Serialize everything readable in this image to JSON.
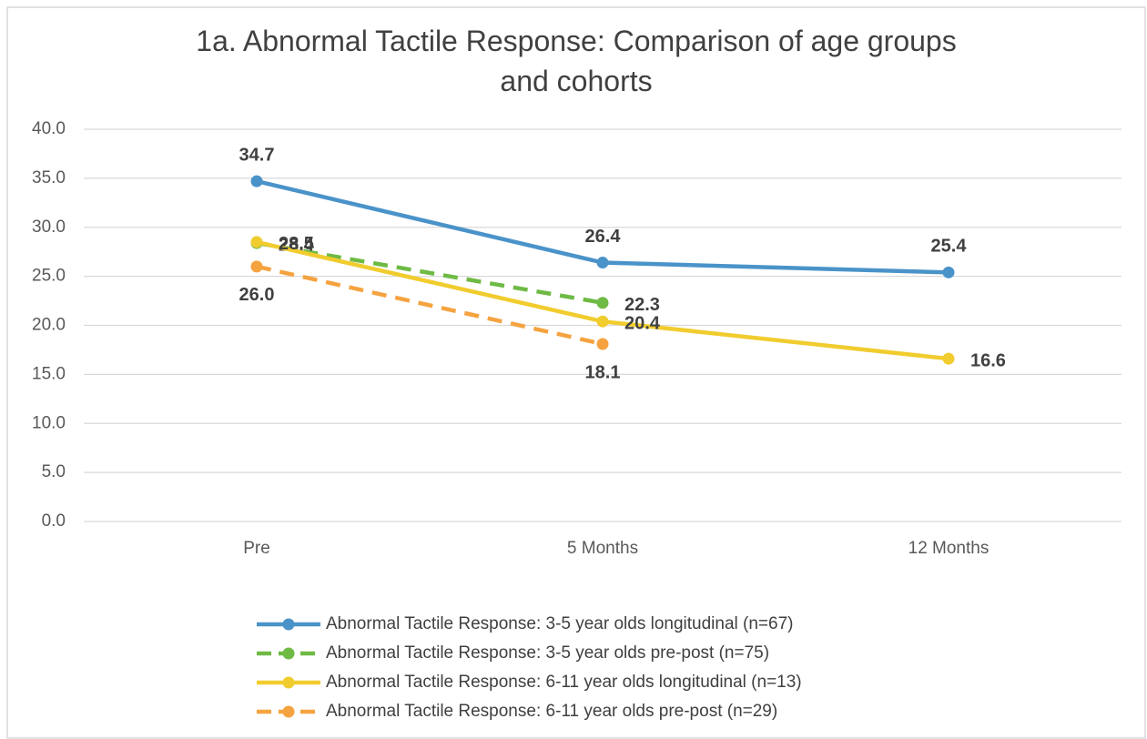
{
  "chart_data": {
    "type": "line",
    "title": "1a. Abnormal Tactile Response: Comparison of age groups and cohorts",
    "categories": [
      "Pre",
      "5 Months",
      "12 Months"
    ],
    "series": [
      {
        "name": "Abnormal Tactile Response: 3-5 year olds longitudinal (n=67)",
        "color": "#4a93c9",
        "dashed": false,
        "values": [
          34.7,
          26.4,
          25.4
        ],
        "value_labels": [
          "34.7",
          "26.4",
          "25.4"
        ]
      },
      {
        "name": "Abnormal Tactile Response: 3-5 year olds pre-post (n=75)",
        "color": "#6fba45",
        "dashed": true,
        "values": [
          28.4,
          22.3,
          null
        ],
        "value_labels": [
          "28.4",
          "22.3",
          null
        ]
      },
      {
        "name": "Abnormal Tactile Response: 6-11 year olds longitudinal (n=13)",
        "color": "#f1cc2e",
        "dashed": false,
        "values": [
          28.5,
          20.4,
          16.6
        ],
        "value_labels": [
          "28.5",
          "20.4",
          "16.6"
        ]
      },
      {
        "name": "Abnormal Tactile Response: 6-11 year olds pre-post (n=29)",
        "color": "#f5a340",
        "dashed": true,
        "values": [
          26.0,
          18.1,
          null
        ],
        "value_labels": [
          "26.0",
          "18.1",
          null
        ]
      }
    ],
    "ylim": [
      0,
      40
    ],
    "yticks": [
      {
        "value": 0,
        "label": "0.0"
      },
      {
        "value": 5,
        "label": "5.0"
      },
      {
        "value": 10,
        "label": "10.0"
      },
      {
        "value": 15,
        "label": "15.0"
      },
      {
        "value": 20,
        "label": "20.0"
      },
      {
        "value": 25,
        "label": "25.0"
      },
      {
        "value": 30,
        "label": "30.0"
      },
      {
        "value": 35,
        "label": "35.0"
      },
      {
        "value": 40,
        "label": "40.0"
      }
    ],
    "grid": true,
    "legend": "bottom"
  }
}
